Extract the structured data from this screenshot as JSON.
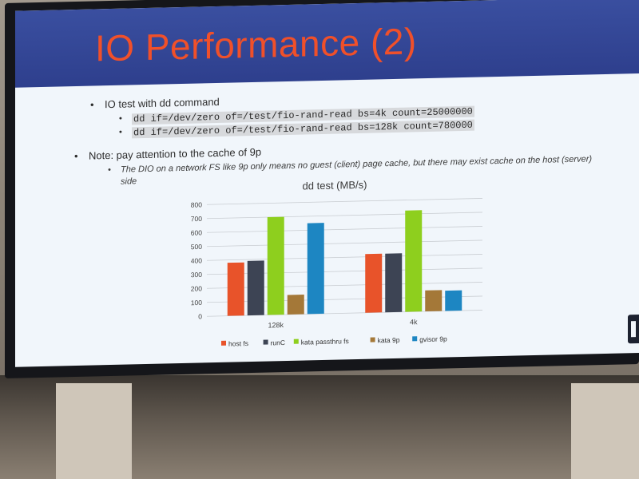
{
  "slide": {
    "title": "IO Performance (2)",
    "bullets": {
      "b1": "IO test with dd command",
      "b1_sub1": "dd if=/dev/zero of=/test/fio-rand-read bs=4k count=25000000",
      "b1_sub2": "dd if=/dev/zero of=/test/fio-rand-read bs=128k count=780000",
      "b2": "Note: pay attention to the cache of 9p",
      "b2_sub1": "The DIO on a network FS like 9p only means no guest (client) page cache, but there may exist cache on the host (server)",
      "b2_sub1_cont": "side"
    }
  },
  "chart_data": {
    "type": "bar",
    "title": "dd test (MB/s)",
    "categories": [
      "128k",
      "4k"
    ],
    "ylim": [
      0,
      800
    ],
    "yticks": [
      0,
      100,
      200,
      300,
      400,
      500,
      600,
      700,
      800
    ],
    "grid": true,
    "legend_position": "bottom",
    "series": [
      {
        "name": "host fs",
        "color": "#e8532a",
        "values": [
          380,
          420
        ]
      },
      {
        "name": "runC",
        "color": "#3d4454",
        "values": [
          390,
          420
        ]
      },
      {
        "name": "kata passthru fs",
        "color": "#8ecf1e",
        "values": [
          700,
          725
        ]
      },
      {
        "name": "kata 9p",
        "color": "#a47838",
        "values": [
          140,
          150
        ]
      },
      {
        "name": "gvisor 9p",
        "color": "#1d86c2",
        "values": [
          650,
          145
        ]
      }
    ]
  }
}
